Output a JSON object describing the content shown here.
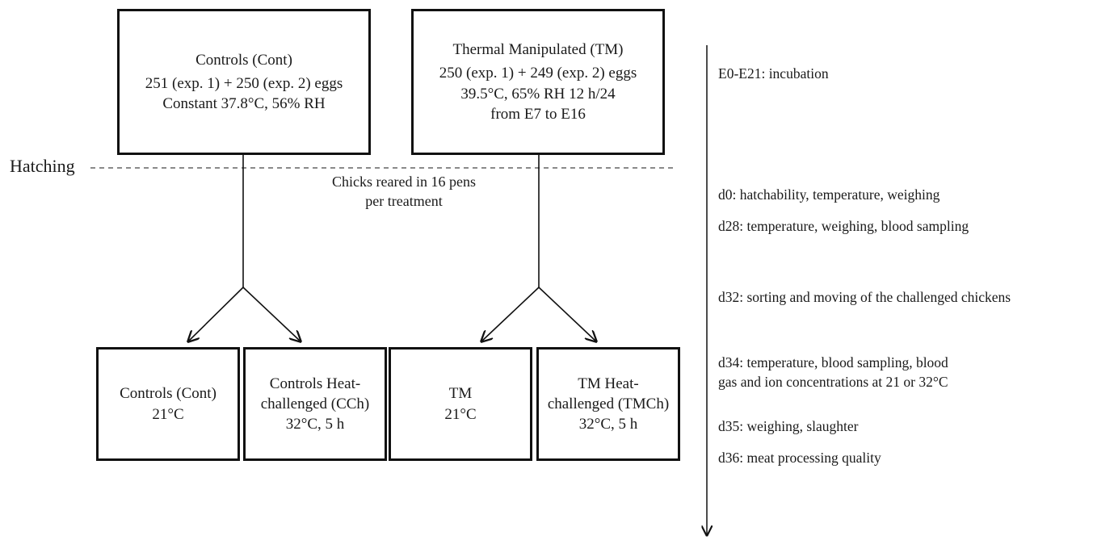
{
  "top_boxes": {
    "controls": {
      "title": "Controls (Cont)",
      "eggs": "251 (exp. 1) + 250 (exp. 2) eggs",
      "conditions": "Constant 37.8°C, 56% RH"
    },
    "thermal": {
      "title": "Thermal Manipulated (TM)",
      "eggs": "250 (exp. 1) + 249 (exp. 2) eggs",
      "conditions": "39.5°C, 65% RH 12 h/24",
      "period": "from E7 to E16"
    }
  },
  "hatching_label": "Hatching",
  "rearing_note": {
    "line1": "Chicks reared in 16 pens",
    "line2": "per treatment"
  },
  "bottom_boxes": [
    {
      "line1": "Controls (Cont)",
      "line2": "21°C"
    },
    {
      "line1": "Controls Heat-",
      "line2": "challenged (CCh)",
      "line3": "32°C, 5 h"
    },
    {
      "line1": "TM",
      "line2": "21°C"
    },
    {
      "line1": "TM Heat-",
      "line2": "challenged (TMCh)",
      "line3": "32°C, 5 h"
    }
  ],
  "timeline": [
    {
      "line1": "E0-E21: incubation"
    },
    {
      "line1": "d0: hatchability, temperature, weighing"
    },
    {
      "line1": "d28: temperature, weighing, blood sampling"
    },
    {
      "line1": "d32: sorting and moving of the challenged chickens"
    },
    {
      "line1": "d34: temperature, blood sampling, blood",
      "line2": "gas and ion concentrations at 21 or 32°C"
    },
    {
      "line1": "d35: weighing, slaughter"
    },
    {
      "line1": "d36: meat processing quality"
    }
  ]
}
